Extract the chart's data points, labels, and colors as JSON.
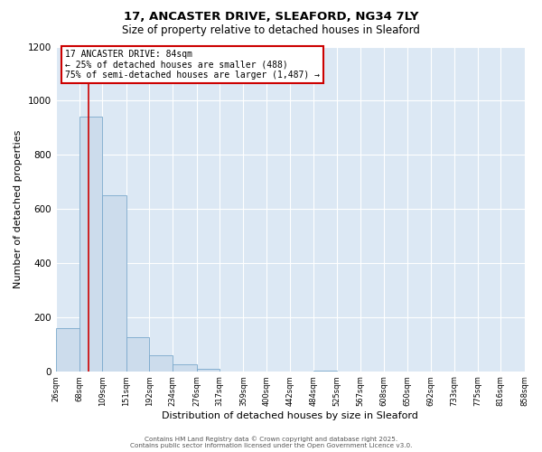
{
  "title_line1": "17, ANCASTER DRIVE, SLEAFORD, NG34 7LY",
  "title_line2": "Size of property relative to detached houses in Sleaford",
  "xlabel": "Distribution of detached houses by size in Sleaford",
  "ylabel": "Number of detached properties",
  "bar_color": "#ccdcec",
  "bar_edge_color": "#7aa8cc",
  "fig_bg_color": "#ffffff",
  "plot_bg_color": "#dce8f4",
  "grid_color": "#ffffff",
  "bin_edges": [
    26,
    68,
    109,
    151,
    192,
    234,
    276,
    317,
    359,
    400,
    442,
    484,
    525,
    567,
    608,
    650,
    692,
    733,
    775,
    816,
    858
  ],
  "bin_labels": [
    "26sqm",
    "68sqm",
    "109sqm",
    "151sqm",
    "192sqm",
    "234sqm",
    "276sqm",
    "317sqm",
    "359sqm",
    "400sqm",
    "442sqm",
    "484sqm",
    "525sqm",
    "567sqm",
    "608sqm",
    "650sqm",
    "692sqm",
    "733sqm",
    "775sqm",
    "816sqm",
    "858sqm"
  ],
  "counts": [
    160,
    940,
    650,
    125,
    58,
    27,
    10,
    0,
    0,
    0,
    0,
    3,
    0,
    0,
    0,
    0,
    0,
    0,
    0,
    0
  ],
  "property_line_x": 84,
  "annotation_title": "17 ANCASTER DRIVE: 84sqm",
  "annotation_line1": "← 25% of detached houses are smaller (488)",
  "annotation_line2": "75% of semi-detached houses are larger (1,487) →",
  "annotation_box_color": "#ffffff",
  "annotation_box_edge_color": "#cc0000",
  "vline_color": "#cc0000",
  "ylim": [
    0,
    1200
  ],
  "yticks": [
    0,
    200,
    400,
    600,
    800,
    1000,
    1200
  ],
  "footer_line1": "Contains HM Land Registry data © Crown copyright and database right 2025.",
  "footer_line2": "Contains public sector information licensed under the Open Government Licence v3.0."
}
